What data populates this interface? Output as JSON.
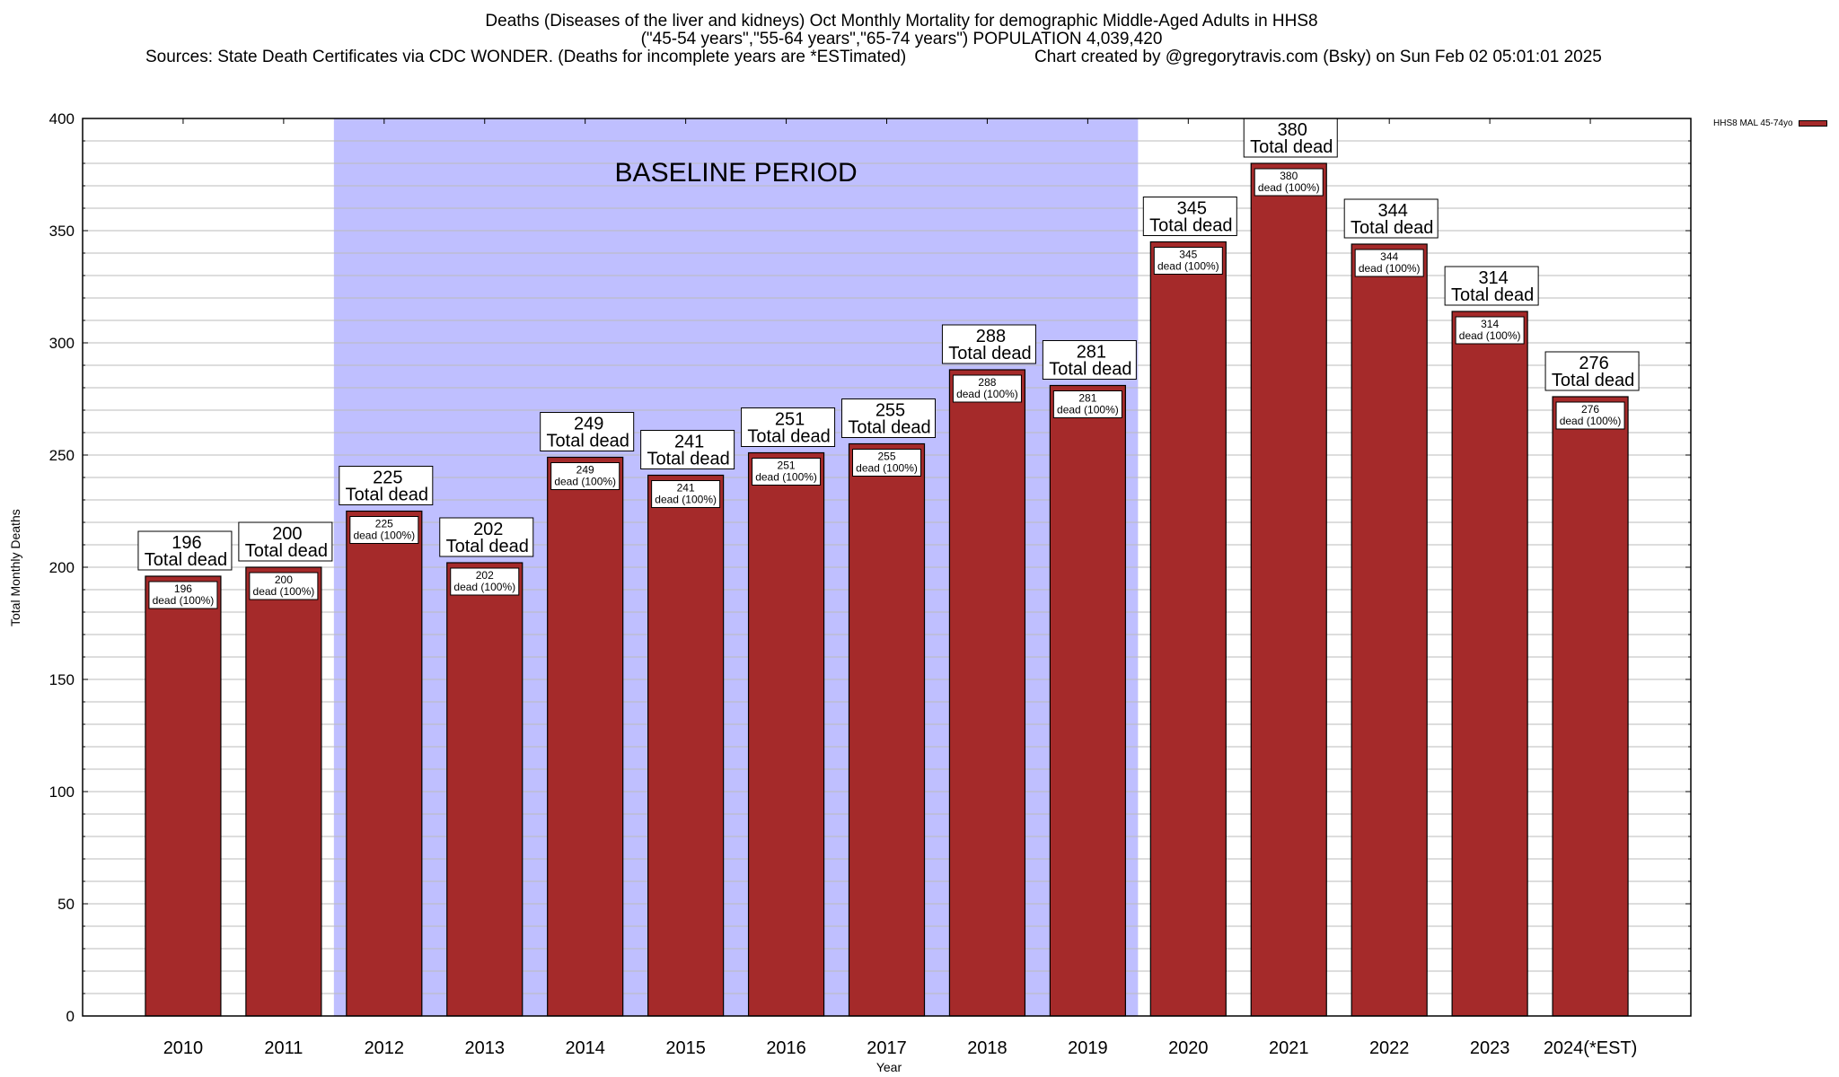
{
  "chart_data": {
    "type": "bar",
    "title": "Deaths (Diseases of the liver and kidneys) Oct Monthly Mortality for demographic Middle-Aged Adults in HHS8",
    "subtitle": "(\"45-54 years\",\"55-64 years\",\"65-74 years\") POPULATION 4,039,420",
    "sources": "Sources: State Death Certificates via CDC WONDER. (Deaths for incomplete years are *ESTimated)",
    "credit": "Chart created by @gregorytravis.com (Bsky) on Sun Feb 02 05:01:01 2025",
    "xlabel": "Year",
    "ylabel": "Total Monthly Deaths",
    "ylim": [
      0,
      400
    ],
    "yticks": [
      0,
      50,
      100,
      150,
      200,
      250,
      300,
      350,
      400
    ],
    "minor_grid_step": 10,
    "grid": true,
    "categories": [
      "2010",
      "2011",
      "2012",
      "2013",
      "2014",
      "2015",
      "2016",
      "2017",
      "2018",
      "2019",
      "2020",
      "2021",
      "2022",
      "2023",
      "2024(*EST)"
    ],
    "series": [
      {
        "name": "HHS8 MAL 45-74yo",
        "color": "#a52a2a",
        "values": [
          196,
          200,
          225,
          202,
          249,
          241,
          251,
          255,
          288,
          281,
          345,
          380,
          344,
          314,
          276
        ]
      }
    ],
    "total_label_suffix": "Total dead",
    "inner_label_suffix": "dead (100%)",
    "annotation": {
      "text": "BASELINE PERIOD",
      "from_category": "2012",
      "to_category": "2019",
      "color": "#bfbfff"
    },
    "legend_position": "top-right"
  }
}
